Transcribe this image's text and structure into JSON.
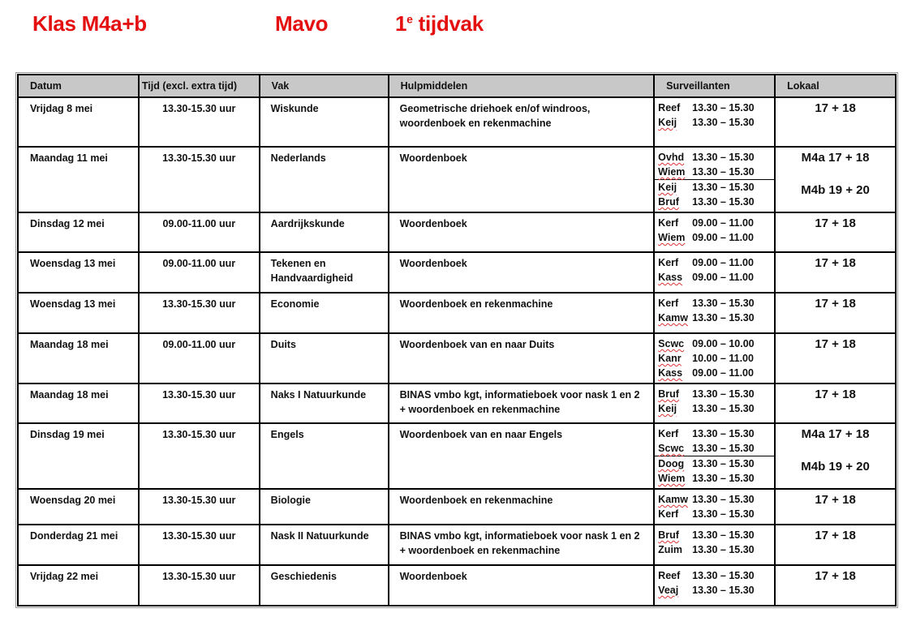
{
  "header": {
    "klas": "Klas M4a+b",
    "niveau": "Mavo",
    "tijdvak_num": "1",
    "tijdvak_sup": "e",
    "tijdvak_label": "tijdvak"
  },
  "columns": [
    "Datum",
    "Tijd (excl. extra tijd)",
    "Vak",
    "Hulpmiddelen",
    "Surveillanten",
    "Lokaal"
  ],
  "rows": [
    {
      "datum": "Vrijdag 8 mei",
      "tijd": "13.30-15.30 uur",
      "vak": "Wiskunde",
      "hulp": "Geometrische driehoek en/of windroos, woordenboek en rekenmachine",
      "surv": [
        [
          {
            "name": "Reef",
            "time": "13.30 – 15.30",
            "spell": false
          },
          {
            "name": "Keij",
            "time": "13.30 – 15.30",
            "spell": true
          }
        ]
      ],
      "lokaal": [
        "17 + 18"
      ]
    },
    {
      "datum": "Maandag 11 mei",
      "tijd": "13.30-15.30 uur",
      "vak": "Nederlands",
      "hulp": "Woordenboek",
      "surv": [
        [
          {
            "name": "Ovhd",
            "time": "13.30 – 15.30",
            "spell": true
          },
          {
            "name": "Wiem",
            "time": "13.30 – 15.30",
            "spell": true
          }
        ],
        [
          {
            "name": "Keij",
            "time": "13.30 – 15.30",
            "spell": true
          },
          {
            "name": "Bruf",
            "time": "13.30 – 15.30",
            "spell": true
          }
        ]
      ],
      "lokaal": [
        "M4a 17 + 18",
        "M4b 19 + 20"
      ]
    },
    {
      "datum": "Dinsdag 12 mei",
      "tijd": "09.00-11.00 uur",
      "vak": "Aardrijkskunde",
      "hulp": "Woordenboek",
      "surv": [
        [
          {
            "name": "Kerf",
            "time": "09.00 – 11.00",
            "spell": false
          },
          {
            "name": "Wiem",
            "time": "09.00 – 11.00",
            "spell": true
          }
        ]
      ],
      "lokaal": [
        "17 + 18"
      ]
    },
    {
      "datum": "Woensdag 13 mei",
      "tijd": "09.00-11.00 uur",
      "vak": "Tekenen en Handvaardigheid",
      "hulp": "Woordenboek",
      "surv": [
        [
          {
            "name": "Kerf",
            "time": "09.00 – 11.00",
            "spell": false
          },
          {
            "name": "Kass",
            "time": "09.00 – 11.00",
            "spell": true
          }
        ]
      ],
      "lokaal": [
        "17 + 18"
      ]
    },
    {
      "datum": "Woensdag 13 mei",
      "tijd": "13.30-15.30 uur",
      "vak": "Economie",
      "hulp": "Woordenboek en rekenmachine",
      "surv": [
        [
          {
            "name": "Kerf",
            "time": "13.30 – 15.30",
            "spell": false
          },
          {
            "name": "Kamw",
            "time": "13.30 – 15.30",
            "spell": true
          }
        ]
      ],
      "lokaal": [
        "17 + 18"
      ]
    },
    {
      "datum": "Maandag 18 mei",
      "tijd": "09.00-11.00 uur",
      "vak": "Duits",
      "hulp": "Woordenboek van en naar Duits",
      "surv": [
        [
          {
            "name": "Scwc",
            "time": "09.00 – 10.00",
            "spell": true
          },
          {
            "name": "Kanr",
            "time": "10.00 – 11.00",
            "spell": true
          },
          {
            "name": "Kass",
            "time": "09.00 – 11.00",
            "spell": true
          }
        ]
      ],
      "lokaal": [
        "17 + 18"
      ]
    },
    {
      "datum": "Maandag 18 mei",
      "tijd": "13.30-15.30 uur",
      "vak": "Naks I  Natuurkunde",
      "hulp": "BINAS vmbo kgt, informatieboek voor nask 1 en 2 + woordenboek en rekenmachine",
      "surv": [
        [
          {
            "name": "Bruf",
            "time": "13.30 – 15.30",
            "spell": true
          },
          {
            "name": "Keij",
            "time": "13.30 – 15.30",
            "spell": true
          }
        ]
      ],
      "lokaal": [
        "17 + 18"
      ]
    },
    {
      "datum": "Dinsdag 19 mei",
      "tijd": "13.30-15.30 uur",
      "vak": "Engels",
      "hulp": "Woordenboek van en naar Engels",
      "surv": [
        [
          {
            "name": "Kerf",
            "time": "13.30 – 15.30",
            "spell": false
          },
          {
            "name": "Scwc",
            "time": "13.30 – 15.30",
            "spell": true
          }
        ],
        [
          {
            "name": "Doog",
            "time": "13.30 – 15.30",
            "spell": true
          },
          {
            "name": "Wiem",
            "time": "13.30 – 15.30",
            "spell": true
          }
        ]
      ],
      "lokaal": [
        "M4a 17 + 18",
        "M4b 19 + 20"
      ]
    },
    {
      "datum": "Woensdag 20 mei",
      "tijd": "13.30-15.30 uur",
      "vak": "Biologie",
      "hulp": "Woordenboek en rekenmachine",
      "surv": [
        [
          {
            "name": "Kamw",
            "time": "13.30 – 15.30",
            "spell": true
          },
          {
            "name": "Kerf",
            "time": "13.30 – 15.30",
            "spell": false
          }
        ]
      ],
      "lokaal": [
        "17 + 18"
      ]
    },
    {
      "datum": "Donderdag 21 mei",
      "tijd": "13.30-15.30 uur",
      "vak": "Nask II  Natuurkunde",
      "hulp": "BINAS vmbo kgt, informatieboek voor nask 1 en 2 + woordenboek en rekenmachine",
      "surv": [
        [
          {
            "name": "Bruf",
            "time": "13.30 – 15.30",
            "spell": true
          },
          {
            "name": "Zuim",
            "time": "13.30 – 15.30",
            "spell": false
          }
        ]
      ],
      "lokaal": [
        "17 + 18"
      ]
    },
    {
      "datum": "Vrijdag 22 mei",
      "tijd": "13.30-15.30 uur",
      "vak": "Geschiedenis",
      "hulp": "Woordenboek",
      "surv": [
        [
          {
            "name": "Reef",
            "time": "13.30 – 15.30",
            "spell": false
          },
          {
            "name": "Veaj",
            "time": "13.30 – 15.30",
            "spell": true
          }
        ]
      ],
      "lokaal": [
        "17 + 18"
      ]
    }
  ]
}
